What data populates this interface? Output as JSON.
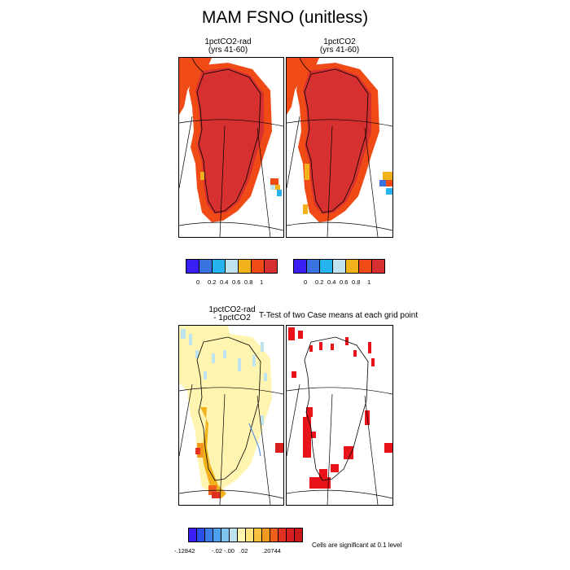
{
  "title": "MAM FSNO (unitless)",
  "panels": {
    "top_left": {
      "title_line1": "1pctCO2-rad",
      "title_line2": "(yrs 41-60)"
    },
    "top_right": {
      "title_line1": "1pctCO2",
      "title_line2": "(yrs 41-60)"
    },
    "bottom_left": {
      "title_line1": "1pctCO2-rad",
      "title_line2": "- 1pctCO2"
    },
    "bottom_right": {
      "title": "T-Test of two Case means at each grid point"
    }
  },
  "colorbar_top": {
    "colors": [
      "#3a1ff5",
      "#3a72e0",
      "#27b3ee",
      "#bfe3ee",
      "#f2b21c",
      "#f04b17",
      "#d63030"
    ],
    "tick_labels": [
      "0",
      "0.2",
      "0.4",
      "0.6",
      "0.8",
      "1"
    ]
  },
  "colorbar_bottom": {
    "colors": [
      "#3a1ff5",
      "#2a4fe8",
      "#3a7ee6",
      "#4aa0ee",
      "#7cc3ee",
      "#bfe3ee",
      "#fff4b0",
      "#fde27a",
      "#f8c040",
      "#f29a20",
      "#f0601a",
      "#e23020",
      "#d81f1f",
      "#c81818"
    ],
    "tick_labels": [
      "-.12842",
      "-.02",
      "-.00",
      ".02",
      ".20744"
    ]
  },
  "significance_note": "Cells are significant at 0.1 level",
  "colors": {
    "snow_high": "#d63030",
    "snow_edge": "#f04b17",
    "diff_base": "#fff4b0",
    "diff_pos": "#f29a20",
    "sig_cells": "#e8141a"
  }
}
